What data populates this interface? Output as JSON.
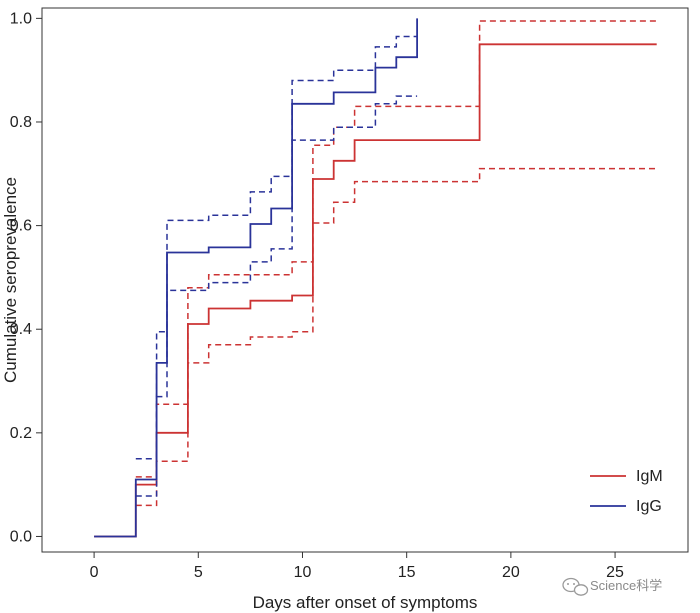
{
  "chart_data": {
    "type": "line",
    "step": true,
    "xlabel": "Days after onset of symptoms",
    "ylabel": "Cumulative seroprevalence",
    "xlim": [
      -2.5,
      28.5
    ],
    "ylim": [
      -0.03,
      1.02
    ],
    "x_ticks": [
      0,
      5,
      10,
      15,
      20,
      25
    ],
    "x_tick_labels": [
      "0",
      "5",
      "10",
      "15",
      "20",
      "25"
    ],
    "y_ticks": [
      0.0,
      0.2,
      0.4,
      0.6,
      0.8,
      1.0
    ],
    "y_tick_labels": [
      "0.0",
      "0.2",
      "0.4",
      "0.6",
      "0.8",
      "1.0"
    ],
    "legend_position": "bottom-right",
    "series": [
      {
        "id": "igm",
        "name": "IgM",
        "color": "#cc3333",
        "style": "solid",
        "in_legend": true,
        "x": [
          0,
          2,
          3,
          4.5,
          5.5,
          7.5,
          9.5,
          10.5,
          11.5,
          12.5,
          18.5,
          27
        ],
        "y": [
          0.0,
          0.1,
          0.2,
          0.41,
          0.44,
          0.455,
          0.465,
          0.69,
          0.725,
          0.765,
          0.95,
          0.95
        ]
      },
      {
        "id": "igm-upper",
        "name": "IgM upper CI",
        "color": "#cc3333",
        "style": "dashed",
        "in_legend": false,
        "x": [
          2,
          3,
          4.5,
          5.5,
          9.5,
          10.5,
          11.5,
          12.5,
          18.5,
          27
        ],
        "y": [
          0.115,
          0.255,
          0.48,
          0.505,
          0.53,
          0.755,
          0.79,
          0.83,
          0.995,
          0.995
        ]
      },
      {
        "id": "igm-lower",
        "name": "IgM lower CI",
        "color": "#cc3333",
        "style": "dashed",
        "in_legend": false,
        "x": [
          2,
          3,
          4.5,
          5.5,
          7.5,
          9.5,
          10.5,
          11.5,
          12.5,
          18.5,
          27
        ],
        "y": [
          0.06,
          0.145,
          0.335,
          0.37,
          0.385,
          0.395,
          0.605,
          0.645,
          0.685,
          0.71,
          0.71
        ]
      },
      {
        "id": "igg",
        "name": "IgG",
        "color": "#2a3399",
        "style": "solid",
        "in_legend": true,
        "x": [
          0,
          2,
          3,
          3.5,
          5.5,
          7.5,
          8.5,
          9.5,
          11.5,
          13.5,
          14.5,
          15.5
        ],
        "y": [
          0.0,
          0.11,
          0.335,
          0.548,
          0.558,
          0.603,
          0.633,
          0.835,
          0.857,
          0.905,
          0.925,
          1.0
        ]
      },
      {
        "id": "igg-upper",
        "name": "IgG upper CI",
        "color": "#2a3399",
        "style": "dashed",
        "in_legend": false,
        "x": [
          2,
          3,
          3.5,
          5.5,
          7.5,
          8.5,
          9.5,
          11.5,
          13.5,
          14.5,
          15.5
        ],
        "y": [
          0.15,
          0.395,
          0.61,
          0.62,
          0.665,
          0.695,
          0.88,
          0.9,
          0.945,
          0.965,
          0.965
        ]
      },
      {
        "id": "igg-lower",
        "name": "IgG lower CI",
        "color": "#2a3399",
        "style": "dashed",
        "in_legend": false,
        "x": [
          2,
          3,
          3.5,
          5.5,
          7.5,
          8.5,
          9.5,
          11.5,
          13.5,
          14.5,
          15.5
        ],
        "y": [
          0.078,
          0.27,
          0.475,
          0.49,
          0.53,
          0.555,
          0.765,
          0.79,
          0.835,
          0.85,
          0.85
        ]
      }
    ]
  },
  "watermark": {
    "text": "Science科学",
    "icon": "wechat-icon"
  }
}
